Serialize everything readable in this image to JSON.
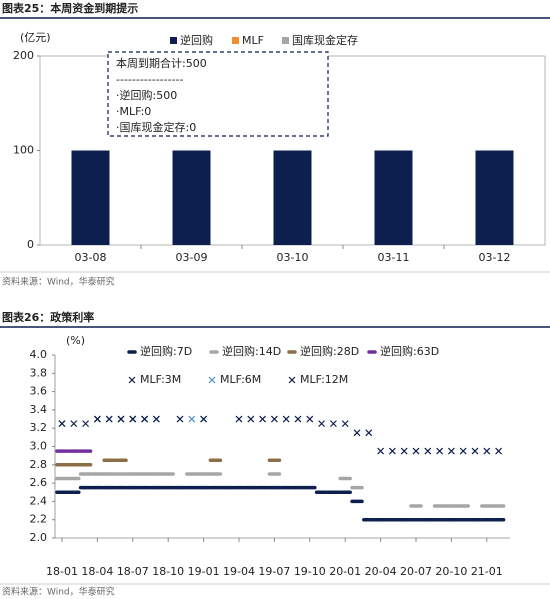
{
  "chart_data": [
    {
      "type": "bar",
      "title": "图表25：本周资金到期提示",
      "y_label": "(亿元)",
      "categories": [
        "03-08",
        "03-09",
        "03-10",
        "03-11",
        "03-12"
      ],
      "series": [
        {
          "name": "逆回购",
          "color": "#0d1f4e",
          "values": [
            100,
            100,
            100,
            100,
            100
          ]
        },
        {
          "name": "MLF",
          "color": "#f28e2b",
          "values": [
            0,
            0,
            0,
            0,
            0
          ]
        },
        {
          "name": "国库现金定存",
          "color": "#a6a6a6",
          "values": [
            0,
            0,
            0,
            0,
            0
          ]
        }
      ],
      "ylim": [
        0,
        200
      ],
      "yticks": [
        0,
        100,
        200
      ],
      "stacked": true,
      "annotation": [
        "本周到期合计:500",
        "-----------------",
        "·逆回购:500",
        "·MLF:0",
        "·国库现金定存:0"
      ],
      "source": "资料来源：Wind，华泰研究"
    },
    {
      "type": "scatter",
      "title": "图表26：政策利率",
      "y_label": "(%)",
      "x": [
        "18-01",
        null,
        null,
        "18-04",
        null,
        null,
        "18-07",
        null,
        null,
        "18-10",
        null,
        null,
        "19-01",
        null,
        null,
        "19-04",
        null,
        null,
        "19-07",
        null,
        null,
        "19-10",
        null,
        null,
        "20-01",
        null,
        null,
        "20-04",
        null,
        null,
        "20-07",
        null,
        null,
        "20-10",
        null,
        null,
        "21-01",
        null
      ],
      "series": [
        {
          "name": "逆回购:7D",
          "color": "#0d1f4e",
          "marker": "dash",
          "values": [
            2.5,
            2.5,
            2.55,
            2.55,
            2.55,
            2.55,
            2.55,
            2.55,
            2.55,
            2.55,
            2.55,
            2.55,
            2.55,
            2.55,
            2.55,
            2.55,
            2.55,
            2.55,
            2.55,
            2.55,
            2.55,
            2.55,
            2.5,
            2.5,
            2.5,
            2.4,
            2.2,
            2.2,
            2.2,
            2.2,
            2.2,
            2.2,
            2.2,
            2.2,
            2.2,
            2.2,
            2.2,
            2.2
          ]
        },
        {
          "name": "逆回购:14D",
          "color": "#a6a6a6",
          "marker": "dash",
          "values": [
            2.65,
            2.65,
            2.7,
            2.7,
            2.7,
            2.7,
            2.7,
            2.7,
            2.7,
            2.7,
            null,
            2.7,
            2.7,
            2.7,
            null,
            null,
            null,
            null,
            2.7,
            null,
            null,
            null,
            null,
            null,
            2.65,
            2.55,
            null,
            null,
            null,
            null,
            2.35,
            null,
            2.35,
            2.35,
            2.35,
            null,
            2.35,
            2.35
          ]
        },
        {
          "name": "逆回购:28D",
          "color": "#8c6d46",
          "marker": "dash",
          "values": [
            2.8,
            2.8,
            2.8,
            null,
            2.85,
            2.85,
            null,
            null,
            null,
            null,
            null,
            null,
            null,
            2.85,
            null,
            null,
            null,
            null,
            2.85,
            null,
            null,
            null,
            null,
            null,
            null,
            null,
            null,
            null,
            null,
            null,
            null,
            null,
            null,
            null,
            null,
            null,
            null,
            null
          ]
        },
        {
          "name": "逆回购:63D",
          "color": "#7030a0",
          "marker": "dash",
          "values": [
            2.95,
            2.95,
            2.95,
            null,
            null,
            null,
            null,
            null,
            null,
            null,
            null,
            null,
            null,
            null,
            null,
            null,
            null,
            null,
            null,
            null,
            null,
            null,
            null,
            null,
            null,
            null,
            null,
            null,
            null,
            null,
            null,
            null,
            null,
            null,
            null,
            null,
            null,
            null
          ]
        },
        {
          "name": "MLF:3M",
          "color": "#0d1f4e",
          "marker": "x",
          "values": [
            3.25,
            3.25,
            3.25,
            3.3,
            null,
            3.3,
            3.3,
            3.3,
            null,
            null,
            null,
            null,
            null,
            null,
            null,
            null,
            null,
            null,
            null,
            null,
            null,
            null,
            null,
            null,
            null,
            null,
            null,
            null,
            null,
            null,
            null,
            null,
            null,
            null,
            null,
            null,
            null,
            null
          ]
        },
        {
          "name": "MLF:6M",
          "color": "#4a90c2",
          "marker": "x",
          "values": [
            null,
            null,
            null,
            null,
            3.3,
            null,
            null,
            3.3,
            3.3,
            null,
            null,
            3.3,
            3.3,
            null,
            null,
            null,
            null,
            null,
            null,
            null,
            null,
            null,
            null,
            null,
            null,
            null,
            null,
            null,
            null,
            null,
            null,
            null,
            null,
            null,
            null,
            null,
            null,
            null
          ]
        },
        {
          "name": "MLF:12M",
          "color": "#0d1f4e",
          "marker": "x",
          "values": [
            3.25,
            null,
            null,
            3.3,
            3.3,
            3.3,
            3.3,
            3.3,
            3.3,
            null,
            3.3,
            null,
            3.3,
            null,
            null,
            3.3,
            3.3,
            3.3,
            3.3,
            3.3,
            3.3,
            3.3,
            3.25,
            3.25,
            3.25,
            3.15,
            3.15,
            2.95,
            2.95,
            2.95,
            2.95,
            2.95,
            2.95,
            2.95,
            2.95,
            2.95,
            2.95,
            2.95
          ]
        }
      ],
      "ylim": [
        2,
        4
      ],
      "yticks": [
        {
          "value": 2,
          "label": "2.0"
        },
        2.2,
        2.4,
        2.6,
        2.8,
        {
          "value": 3,
          "label": "3.0"
        },
        3.2,
        3.4,
        3.6,
        3.8,
        {
          "value": 4,
          "label": "4.0"
        }
      ],
      "source": "资料来源：Wind，华泰研究"
    }
  ]
}
